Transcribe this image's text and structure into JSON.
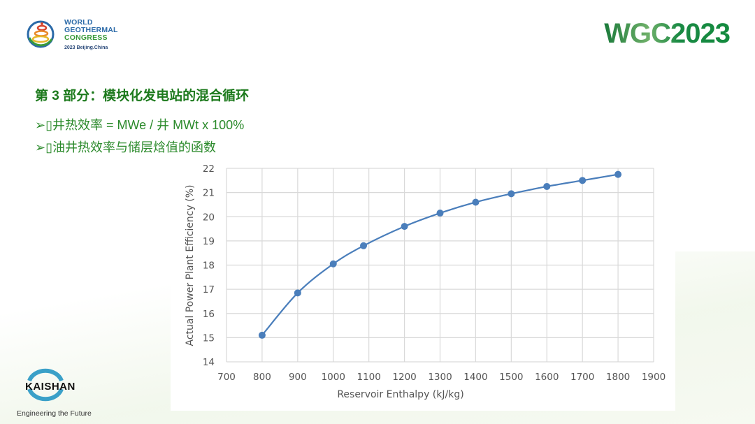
{
  "header": {
    "logo_lines": [
      "WORLD",
      "GEOTHERMAL",
      "CONGRESS"
    ],
    "logo_sub": "2023 Beijing.China",
    "logo_badge": "WGC",
    "brand": "WGC2023"
  },
  "slide": {
    "title": "第 3 部分：模块化发电站的混合循环",
    "bullets": [
      "➢▯井热效率 = MWe / 井 MWt x 100%",
      "➢▯油井热效率与储层焓值的函数"
    ]
  },
  "footer": {
    "company": "KAISHAN",
    "tagline": "Engineering the Future"
  },
  "colors": {
    "series": "#4a7ebb",
    "title": "#1d7a1d",
    "brand": "#1a8a44"
  },
  "chart_data": {
    "type": "line",
    "xlabel": "Reservoir  Enthalpy (kJ/kg)",
    "ylabel": "Actual Power Plant Efficiency (%)",
    "xlim": [
      700,
      1900
    ],
    "ylim": [
      14,
      22
    ],
    "xticks": [
      "700",
      "800",
      "900",
      "1000",
      "1100",
      "1200",
      "1300",
      "1400",
      "1500",
      "1600",
      "1700",
      "1800",
      "1900"
    ],
    "yticks": [
      "14",
      "15",
      "16",
      "17",
      "18",
      "19",
      "20",
      "21",
      "22"
    ],
    "grid": true,
    "markers": true,
    "smooth": true,
    "x": [
      800,
      900,
      1000,
      1085,
      1200,
      1300,
      1400,
      1500,
      1600,
      1700,
      1800
    ],
    "y": [
      15.1,
      16.85,
      18.05,
      18.8,
      19.6,
      20.15,
      20.6,
      20.95,
      21.25,
      21.5,
      21.75
    ]
  }
}
